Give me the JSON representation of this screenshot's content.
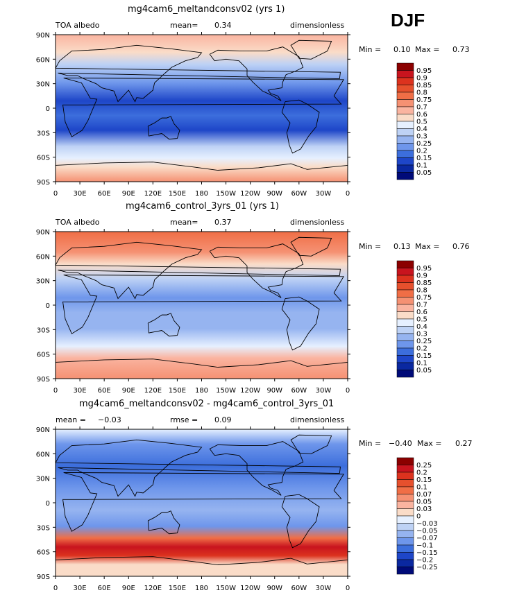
{
  "season": "DJF",
  "panels": [
    {
      "title": "mg4cam6_meltandconsv02 (yrs 1)",
      "left_label": "TOA albedo",
      "mid_label": "mean=",
      "mid_value": "0.34",
      "right_label": "dimensionless",
      "rmse_label": "",
      "rmse_value": "",
      "min_label": "Min =",
      "min_value": "0.10",
      "max_label": "Max =",
      "max_value": "0.73",
      "colorbar_labels": [
        "0.95",
        "0.9",
        "0.85",
        "0.8",
        "0.75",
        "0.7",
        "0.6",
        "0.5",
        "0.4",
        "0.3",
        "0.25",
        "0.2",
        "0.15",
        "0.1",
        "0.05"
      ],
      "colorbar_colors": [
        "#8b0000",
        "#c8141e",
        "#dc321e",
        "#e6502d",
        "#f06e46",
        "#f59173",
        "#fab4a0",
        "#fadcc8",
        "#e6f0ff",
        "#bed2f5",
        "#96b4f0",
        "#6e96eb",
        "#3c6edc",
        "#1e46c8",
        "#0a28a0",
        "#000a78"
      ]
    },
    {
      "title": "mg4cam6_control_3yrs_01 (yrs 1)",
      "left_label": "TOA albedo",
      "mid_label": "mean=",
      "mid_value": "0.37",
      "right_label": "dimensionless",
      "rmse_label": "",
      "rmse_value": "",
      "min_label": "Min =",
      "min_value": "0.13",
      "max_label": "Max =",
      "max_value": "0.76",
      "colorbar_labels": [
        "0.95",
        "0.9",
        "0.85",
        "0.8",
        "0.75",
        "0.7",
        "0.6",
        "0.5",
        "0.4",
        "0.3",
        "0.25",
        "0.2",
        "0.15",
        "0.1",
        "0.05"
      ],
      "colorbar_colors": [
        "#8b0000",
        "#c8141e",
        "#dc321e",
        "#e6502d",
        "#f06e46",
        "#f59173",
        "#fab4a0",
        "#fadcc8",
        "#e6f0ff",
        "#bed2f5",
        "#96b4f0",
        "#6e96eb",
        "#3c6edc",
        "#1e46c8",
        "#0a28a0",
        "#000a78"
      ]
    },
    {
      "title": "mg4cam6_meltandconsv02 - mg4cam6_control_3yrs_01",
      "left_label": "mean =",
      "mid_label": "−0.03",
      "mid_value": "",
      "right_label": "dimensionless",
      "rmse_label": "rmse =",
      "rmse_value": "0.09",
      "min_label": "Min =",
      "min_value": "−0.40",
      "max_label": "Max =",
      "max_value": "0.27",
      "colorbar_labels": [
        "0.25",
        "0.2",
        "0.15",
        "0.1",
        "0.07",
        "0.05",
        "0.03",
        "0",
        "−0.03",
        "−0.05",
        "−0.07",
        "−0.1",
        "−0.15",
        "−0.2",
        "−0.25"
      ],
      "colorbar_colors": [
        "#8b0000",
        "#c8141e",
        "#dc321e",
        "#e6502d",
        "#f06e46",
        "#f59173",
        "#fab4a0",
        "#fadcc8",
        "#e6f0ff",
        "#bed2f5",
        "#96b4f0",
        "#6e96eb",
        "#3c6edc",
        "#1e46c8",
        "#0a28a0",
        "#000a78"
      ]
    }
  ],
  "lat_ticks": [
    "90N",
    "60N",
    "30N",
    "0",
    "30S",
    "60S",
    "90S"
  ],
  "lon_ticks": [
    "0",
    "30E",
    "60E",
    "90E",
    "120E",
    "150E",
    "180",
    "150W",
    "120W",
    "90W",
    "60W",
    "30W",
    "0"
  ]
}
